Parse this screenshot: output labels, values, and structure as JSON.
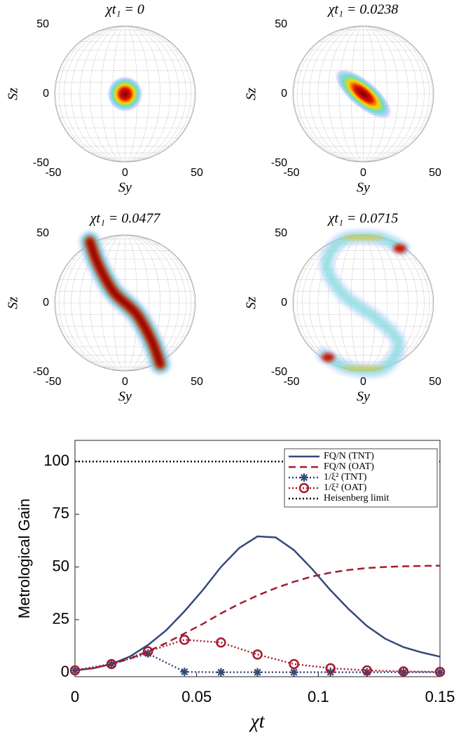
{
  "chart_data": [
    {
      "type": "sphere",
      "title": "χt₁ = 0",
      "xlabel": "Sy",
      "ylabel": "Sz",
      "xlim": [
        -50,
        50
      ],
      "ylim": [
        -50,
        50
      ],
      "xticks": [
        -50,
        0,
        50
      ],
      "yticks": [
        -50,
        0,
        50
      ]
    },
    {
      "type": "sphere",
      "title": "χt₁ = 0.0238",
      "xlabel": "Sy",
      "ylabel": "Sz",
      "xlim": [
        -50,
        50
      ],
      "ylim": [
        -50,
        50
      ],
      "xticks": [
        -50,
        0,
        50
      ],
      "yticks": [
        -50,
        0,
        50
      ]
    },
    {
      "type": "sphere",
      "title": "χt₁ = 0.0477",
      "xlabel": "Sy",
      "ylabel": "Sz",
      "xlim": [
        -50,
        50
      ],
      "ylim": [
        -50,
        50
      ],
      "xticks": [
        -50,
        0,
        50
      ],
      "yticks": [
        -50,
        0,
        50
      ]
    },
    {
      "type": "sphere",
      "title": "χt₁ = 0.0715",
      "xlabel": "Sy",
      "ylabel": "Sz",
      "xlim": [
        -50,
        50
      ],
      "ylim": [
        -50,
        50
      ],
      "xticks": [
        -50,
        0,
        50
      ],
      "yticks": [
        -50,
        0,
        50
      ]
    },
    {
      "type": "line",
      "xlabel": "χt",
      "ylabel": "Metrological Gain",
      "xlim": [
        0,
        0.15
      ],
      "ylim": [
        -2,
        110
      ],
      "xticks": [
        0,
        0.05,
        0.1,
        0.15
      ],
      "yticks": [
        0,
        25,
        50,
        75,
        100
      ],
      "legend": "upper right",
      "series": [
        {
          "name": "FQ/N (TNT)",
          "color": "#34497a",
          "style": "solid",
          "marker": null,
          "x": [
            0,
            0.0075,
            0.015,
            0.0225,
            0.03,
            0.0375,
            0.045,
            0.0525,
            0.06,
            0.0675,
            0.075,
            0.0825,
            0.09,
            0.0975,
            0.105,
            0.1125,
            0.12,
            0.1275,
            0.135,
            0.1425,
            0.15
          ],
          "values": [
            1,
            2,
            4,
            7.5,
            13,
            20,
            29,
            39,
            50,
            59,
            64.5,
            64,
            58,
            49,
            39,
            30,
            22,
            16,
            12,
            9.5,
            7.5
          ]
        },
        {
          "name": "FQ/N (OAT)",
          "color": "#a51c30",
          "style": "dashed",
          "marker": null,
          "x": [
            0,
            0.0075,
            0.015,
            0.0225,
            0.03,
            0.0375,
            0.045,
            0.0525,
            0.06,
            0.0675,
            0.075,
            0.0825,
            0.09,
            0.0975,
            0.105,
            0.1125,
            0.12,
            0.1275,
            0.135,
            0.1425,
            0.15
          ],
          "values": [
            1,
            2,
            4,
            6.5,
            10,
            14,
            18.5,
            23,
            28,
            32.5,
            36.5,
            40,
            43,
            45.5,
            47.3,
            48.6,
            49.5,
            50,
            50.3,
            50.5,
            50.6
          ]
        },
        {
          "name": "1/ξ² (TNT)",
          "color": "#34497a",
          "style": "dotted",
          "marker": "asterisk",
          "x": [
            0,
            0.015,
            0.03,
            0.045,
            0.06,
            0.075,
            0.09,
            0.105,
            0.12,
            0.135,
            0.15
          ],
          "values": [
            1,
            4,
            9,
            0.3,
            0.1,
            0.1,
            0.1,
            0.1,
            0.1,
            0.1,
            0.1
          ]
        },
        {
          "name": "1/ξ² (OAT)",
          "color": "#a51c30",
          "style": "dotted",
          "marker": "circle",
          "x": [
            0,
            0.015,
            0.03,
            0.045,
            0.06,
            0.075,
            0.09,
            0.105,
            0.12,
            0.135,
            0.15
          ],
          "values": [
            1,
            4,
            10,
            15.5,
            14.2,
            8.5,
            4,
            2,
            1,
            0.5,
            0.3
          ]
        },
        {
          "name": "Heisenberg limit",
          "color": "#000000",
          "style": "dotted",
          "marker": null,
          "x": [
            0,
            0.15
          ],
          "values": [
            100,
            100
          ]
        }
      ]
    }
  ]
}
